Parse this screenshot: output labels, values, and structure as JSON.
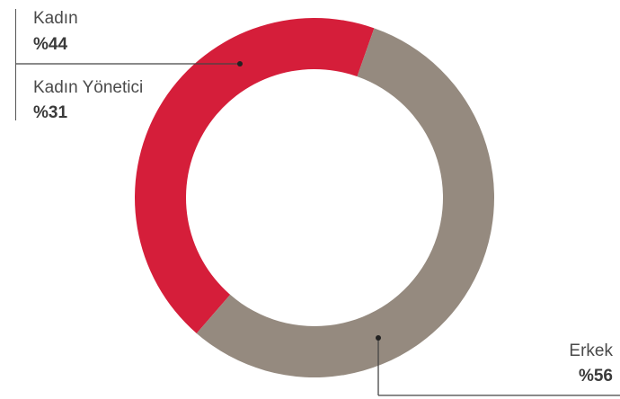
{
  "chart_data": {
    "type": "pie",
    "style": "donut",
    "slices": [
      {
        "label": "Kadın",
        "value_text": "%44",
        "value": 44,
        "color": "#D51E3A"
      },
      {
        "label": "Erkek",
        "value_text": "%56",
        "value": 56,
        "color": "#958A7F"
      }
    ],
    "annotations": [
      {
        "label": "Kadın Yönetici",
        "value_text": "%31",
        "value": 31
      }
    ],
    "background": "#FFFFFF"
  }
}
